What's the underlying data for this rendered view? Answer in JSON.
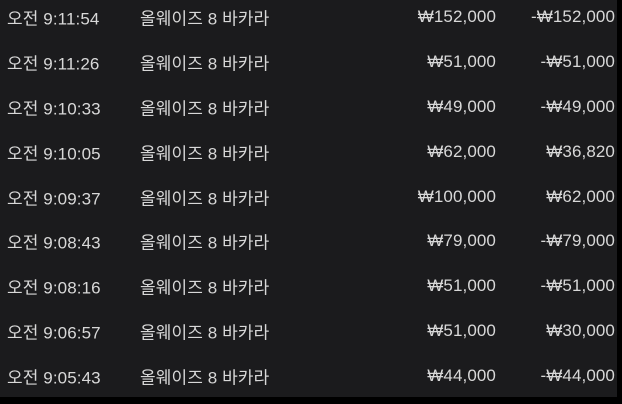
{
  "colors": {
    "background": "#1b1b1d",
    "text": "#d8d8d8",
    "edge": "#000000"
  },
  "history": {
    "columns": [
      "time",
      "game",
      "bet_amount",
      "result_amount"
    ],
    "currency_symbol": "₩",
    "rows": [
      {
        "time": "오전 9:11:54",
        "game": "올웨이즈 8 바카라",
        "bet": "₩152,000",
        "result": "-₩152,000"
      },
      {
        "time": "오전 9:11:26",
        "game": "올웨이즈 8 바카라",
        "bet": "₩51,000",
        "result": "-₩51,000"
      },
      {
        "time": "오전 9:10:33",
        "game": "올웨이즈 8 바카라",
        "bet": "₩49,000",
        "result": "-₩49,000"
      },
      {
        "time": "오전 9:10:05",
        "game": "올웨이즈 8 바카라",
        "bet": "₩62,000",
        "result": "₩36,820"
      },
      {
        "time": "오전 9:09:37",
        "game": "올웨이즈 8 바카라",
        "bet": "₩100,000",
        "result": "₩62,000"
      },
      {
        "time": "오전 9:08:43",
        "game": "올웨이즈 8 바카라",
        "bet": "₩79,000",
        "result": "-₩79,000"
      },
      {
        "time": "오전 9:08:16",
        "game": "올웨이즈 8 바카라",
        "bet": "₩51,000",
        "result": "-₩51,000"
      },
      {
        "time": "오전 9:06:57",
        "game": "올웨이즈 8 바카라",
        "bet": "₩51,000",
        "result": "₩30,000"
      },
      {
        "time": "오전 9:05:43",
        "game": "올웨이즈 8 바카라",
        "bet": "₩44,000",
        "result": "-₩44,000"
      }
    ]
  }
}
